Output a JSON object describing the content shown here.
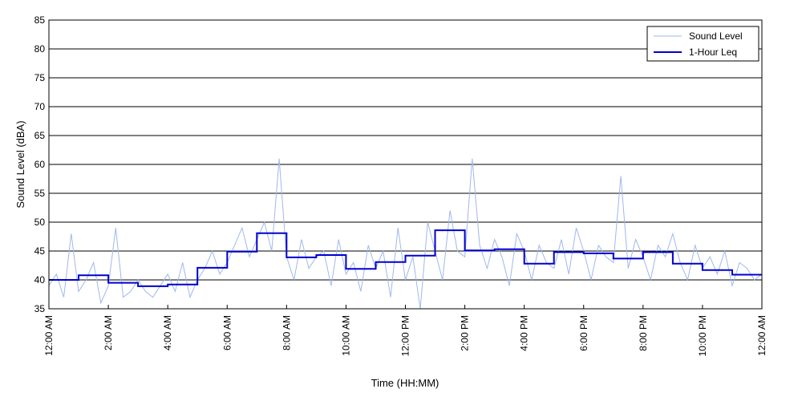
{
  "chart_data": {
    "type": "line",
    "xlabel": "Time (HH:MM)",
    "ylabel": "Sound Level (dBA)",
    "ylim": [
      35,
      85
    ],
    "yticks": [
      "35",
      "40",
      "45",
      "50",
      "55",
      "60",
      "65",
      "70",
      "75",
      "80",
      "85"
    ],
    "xlim_hours": [
      0,
      24
    ],
    "xticks": [
      {
        "hour": 0,
        "label": "12:00 AM"
      },
      {
        "hour": 2,
        "label": "2:00 AM"
      },
      {
        "hour": 4,
        "label": "4:00 AM"
      },
      {
        "hour": 6,
        "label": "6:00 AM"
      },
      {
        "hour": 8,
        "label": "8:00 AM"
      },
      {
        "hour": 10,
        "label": "10:00 AM"
      },
      {
        "hour": 12,
        "label": "12:00 PM"
      },
      {
        "hour": 14,
        "label": "2:00 PM"
      },
      {
        "hour": 16,
        "label": "4:00 PM"
      },
      {
        "hour": 18,
        "label": "6:00 PM"
      },
      {
        "hour": 20,
        "label": "8:00 PM"
      },
      {
        "hour": 22,
        "label": "10:00 PM"
      },
      {
        "hour": 24,
        "label": "12:00 AM"
      }
    ],
    "grid": "horizontal",
    "legend_position": "top-right",
    "series": [
      {
        "name": "Sound Level",
        "color": "#9fb8ee",
        "x_hours": [
          0.0,
          0.25,
          0.5,
          0.75,
          1.0,
          1.25,
          1.5,
          1.75,
          2.0,
          2.25,
          2.5,
          2.75,
          3.0,
          3.25,
          3.5,
          3.75,
          4.0,
          4.25,
          4.5,
          4.75,
          5.0,
          5.25,
          5.5,
          5.75,
          6.0,
          6.25,
          6.5,
          6.75,
          7.0,
          7.25,
          7.5,
          7.75,
          8.0,
          8.25,
          8.5,
          8.75,
          9.0,
          9.25,
          9.5,
          9.75,
          10.0,
          10.25,
          10.5,
          10.75,
          11.0,
          11.25,
          11.5,
          11.75,
          12.0,
          12.25,
          12.5,
          12.75,
          13.0,
          13.25,
          13.5,
          13.75,
          14.0,
          14.25,
          14.5,
          14.75,
          15.0,
          15.25,
          15.5,
          15.75,
          16.0,
          16.25,
          16.5,
          16.75,
          17.0,
          17.25,
          17.5,
          17.75,
          18.0,
          18.25,
          18.5,
          18.75,
          19.0,
          19.25,
          19.5,
          19.75,
          20.0,
          20.25,
          20.5,
          20.75,
          21.0,
          21.25,
          21.5,
          21.75,
          22.0,
          22.25,
          22.5,
          22.75,
          23.0,
          23.25,
          23.5,
          23.75,
          24.0
        ],
        "values": [
          39,
          41,
          37,
          48,
          38,
          40,
          43,
          36,
          39,
          49,
          37,
          38,
          40,
          38,
          37,
          39,
          41,
          38,
          43,
          37,
          40,
          42,
          45,
          41,
          43,
          46,
          49,
          44,
          47,
          50,
          45,
          61,
          44,
          40,
          47,
          42,
          44,
          45,
          39,
          47,
          41,
          43,
          38,
          46,
          42,
          45,
          37,
          49,
          40,
          44,
          35,
          50,
          45,
          40,
          52,
          45,
          44,
          61,
          46,
          42,
          47,
          44,
          39,
          48,
          45,
          40,
          46,
          43,
          42,
          47,
          41,
          49,
          45,
          40,
          46,
          44,
          43,
          58,
          42,
          47,
          44,
          40,
          46,
          44,
          48,
          43,
          40,
          46,
          42,
          44,
          41,
          45,
          39,
          43,
          42,
          40,
          41
        ]
      },
      {
        "name": "1-Hour Leq",
        "color": "#0000d0",
        "hour_start": [
          0,
          1,
          2,
          3,
          4,
          5,
          6,
          7,
          8,
          9,
          10,
          11,
          12,
          13,
          14,
          15,
          16,
          17,
          18,
          19,
          20,
          21,
          22,
          23
        ],
        "values": [
          40.0,
          40.8,
          39.5,
          38.9,
          39.2,
          42.1,
          44.9,
          48.1,
          43.9,
          44.3,
          41.9,
          43.1,
          44.2,
          48.6,
          45.1,
          45.3,
          42.8,
          44.8,
          44.6,
          43.7,
          44.8,
          42.8,
          41.7,
          40.9
        ]
      }
    ]
  }
}
